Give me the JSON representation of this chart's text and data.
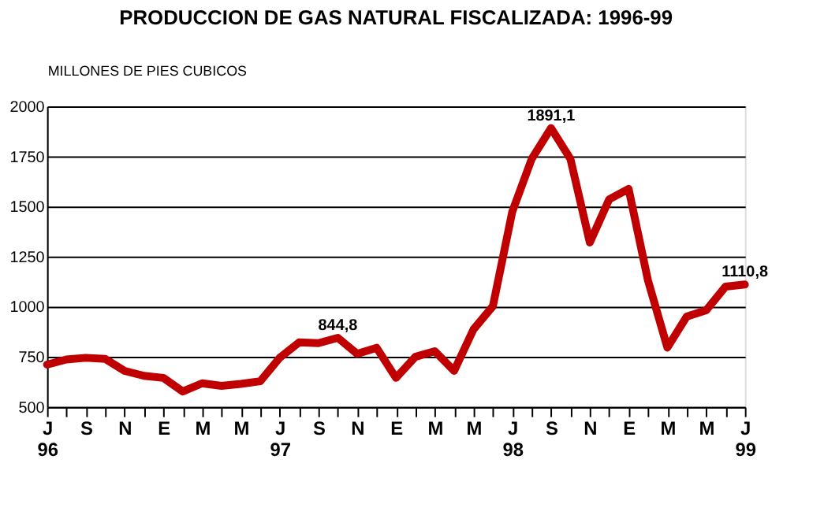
{
  "chart_data": {
    "type": "line",
    "title": "PRODUCCION DE GAS NATURAL FISCALIZADA: 1996-99",
    "ylabel": "MILLONES DE PIES CUBICOS",
    "categories": [
      "J\n96",
      null,
      "S",
      null,
      "N",
      null,
      "E",
      null,
      "M",
      null,
      "M",
      null,
      "J\n97",
      null,
      "S",
      null,
      "N",
      null,
      "E",
      null,
      "M",
      null,
      "M",
      null,
      "J\n98",
      null,
      "S",
      null,
      "N",
      null,
      "E",
      null,
      "M",
      null,
      "M",
      null,
      "J\n99"
    ],
    "series": [
      {
        "color": "#c00000",
        "values": [
          711,
          737,
          745,
          740,
          680,
          655,
          645,
          577,
          618,
          605,
          615,
          628,
          745,
          822,
          818,
          844.8,
          765,
          795,
          645,
          750,
          778,
          680,
          887,
          1003,
          1474,
          1737,
          1891.1,
          1737,
          1320,
          1536,
          1588,
          1131,
          796,
          951,
          982,
          1100,
          1110.8
        ],
        "value_labels": [
          null,
          null,
          null,
          null,
          null,
          null,
          null,
          null,
          null,
          null,
          null,
          null,
          null,
          null,
          null,
          "844,8",
          null,
          null,
          null,
          null,
          null,
          null,
          null,
          null,
          null,
          null,
          "1891,1",
          null,
          null,
          null,
          null,
          null,
          null,
          null,
          null,
          null,
          "1110,8"
        ]
      }
    ],
    "ylim": [
      500,
      2000
    ],
    "yticks": [
      500,
      750,
      1000,
      1250,
      1500,
      1750,
      2000
    ],
    "grid": "y",
    "marker": "none",
    "line_style": "solid"
  }
}
